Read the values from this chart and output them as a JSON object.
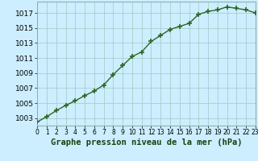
{
  "x": [
    0,
    1,
    2,
    3,
    4,
    5,
    6,
    7,
    8,
    9,
    10,
    11,
    12,
    13,
    14,
    15,
    16,
    17,
    18,
    19,
    20,
    21,
    22,
    23
  ],
  "y": [
    1002.5,
    1003.2,
    1004.0,
    1004.7,
    1005.3,
    1006.0,
    1006.6,
    1007.4,
    1008.8,
    1010.0,
    1011.2,
    1011.8,
    1013.2,
    1014.0,
    1014.8,
    1015.2,
    1015.6,
    1016.8,
    1017.2,
    1017.4,
    1017.8,
    1017.6,
    1017.4,
    1017.0
  ],
  "line_color": "#2d6626",
  "marker_color": "#2d6626",
  "background_color": "#cceeff",
  "grid_color": "#aacccc",
  "xlabel": "Graphe pression niveau de la mer (hPa)",
  "xlabel_color": "#1a4010",
  "xlabel_fontsize": 7.5,
  "yticks": [
    1003,
    1005,
    1007,
    1009,
    1011,
    1013,
    1015,
    1017
  ],
  "xticks": [
    0,
    1,
    2,
    3,
    4,
    5,
    6,
    7,
    8,
    9,
    10,
    11,
    12,
    13,
    14,
    15,
    16,
    17,
    18,
    19,
    20,
    21,
    22,
    23
  ],
  "ylim": [
    1002.0,
    1018.5
  ],
  "xlim": [
    0,
    23
  ],
  "tick_fontsize": 6.5,
  "xtick_fontsize": 5.5,
  "line_width": 1.0,
  "marker_size": 4
}
